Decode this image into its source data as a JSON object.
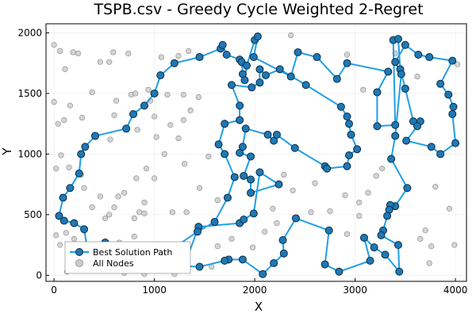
{
  "chart_data": {
    "type": "scatter",
    "title": "TSPB.csv - Greedy Cycle Weighted 2-Regret",
    "xlabel": "X",
    "ylabel": "Y",
    "xlim": [
      -80,
      4110
    ],
    "ylim": [
      -50,
      2075
    ],
    "xticks": [
      0,
      1000,
      2000,
      3000,
      4000
    ],
    "yticks": [
      0,
      500,
      1000,
      1500,
      2000
    ],
    "grid": true,
    "legend_position": "bottom-left",
    "series": [
      {
        "name": "Best Solution Path",
        "kind": "line+markers",
        "color": "#1f9fe8",
        "marker_color": "#1f78b4",
        "closed": true,
        "points": [
          [
            1450,
            1800
          ],
          [
            1660,
            1870
          ],
          [
            1680,
            1900
          ],
          [
            1720,
            1820
          ],
          [
            1850,
            1780
          ],
          [
            1870,
            1760
          ],
          [
            1880,
            1660
          ],
          [
            1900,
            1610
          ],
          [
            1920,
            1730
          ],
          [
            2000,
            1940
          ],
          [
            2030,
            1970
          ],
          [
            1990,
            1800
          ],
          [
            2360,
            1640
          ],
          [
            2430,
            1840
          ],
          [
            2620,
            1800
          ],
          [
            2820,
            1620
          ],
          [
            2920,
            1750
          ],
          [
            3330,
            1680
          ],
          [
            3220,
            1510
          ],
          [
            3220,
            1230
          ],
          [
            3400,
            1240
          ],
          [
            3380,
            1940
          ],
          [
            3430,
            1950
          ],
          [
            3450,
            1700
          ],
          [
            3500,
            1540
          ],
          [
            3580,
            1270
          ],
          [
            3650,
            1270
          ],
          [
            3620,
            1230
          ],
          [
            3510,
            1110
          ],
          [
            3760,
            1060
          ],
          [
            3850,
            1000
          ],
          [
            4000,
            1090
          ],
          [
            3970,
            1330
          ],
          [
            3980,
            1390
          ],
          [
            3930,
            1490
          ],
          [
            3850,
            1580
          ],
          [
            3970,
            1770
          ],
          [
            3740,
            1800
          ],
          [
            3630,
            1820
          ],
          [
            3500,
            1900
          ],
          [
            3400,
            1760
          ],
          [
            3460,
            1660
          ],
          [
            3400,
            1150
          ],
          [
            3360,
            960
          ],
          [
            3520,
            720
          ],
          [
            3400,
            570
          ],
          [
            3350,
            580
          ],
          [
            3340,
            540
          ],
          [
            3320,
            490
          ],
          [
            3280,
            370
          ],
          [
            3260,
            330
          ],
          [
            3430,
            250
          ],
          [
            3440,
            30
          ],
          [
            3300,
            170
          ],
          [
            3190,
            230
          ],
          [
            3090,
            310
          ],
          [
            3150,
            120
          ],
          [
            2840,
            30
          ],
          [
            2700,
            90
          ],
          [
            2740,
            370
          ],
          [
            2410,
            470
          ],
          [
            2280,
            290
          ],
          [
            2290,
            180
          ],
          [
            2190,
            100
          ],
          [
            2080,
            10
          ],
          [
            1880,
            130
          ],
          [
            1740,
            130
          ],
          [
            1700,
            120
          ],
          [
            1450,
            70
          ],
          [
            1190,
            80
          ],
          [
            1290,
            60
          ],
          [
            1440,
            400
          ],
          [
            1850,
            430
          ],
          [
            1890,
            460
          ],
          [
            1990,
            510
          ],
          [
            2050,
            850
          ],
          [
            2240,
            750
          ],
          [
            1960,
            680
          ],
          [
            1960,
            790
          ],
          [
            1890,
            820
          ],
          [
            1960,
            980
          ],
          [
            1850,
            1010
          ],
          [
            1880,
            1060
          ],
          [
            1910,
            1210
          ],
          [
            2130,
            1160
          ],
          [
            2190,
            1110
          ],
          [
            2220,
            1160
          ],
          [
            2400,
            1050
          ],
          [
            2700,
            900
          ],
          [
            2720,
            880
          ],
          [
            2920,
            900
          ],
          [
            2940,
            990
          ],
          [
            3020,
            1040
          ],
          [
            2960,
            1160
          ],
          [
            2940,
            1250
          ],
          [
            2920,
            1310
          ],
          [
            2860,
            1390
          ],
          [
            2510,
            1570
          ],
          [
            2250,
            1700
          ],
          [
            2110,
            1650
          ],
          [
            2050,
            1700
          ],
          [
            2050,
            1590
          ],
          [
            1970,
            1550
          ],
          [
            1770,
            1570
          ],
          [
            1850,
            1400
          ],
          [
            1850,
            1280
          ],
          [
            1700,
            1250
          ],
          [
            1640,
            1080
          ],
          [
            1700,
            1000
          ],
          [
            1800,
            810
          ],
          [
            1730,
            640
          ],
          [
            1600,
            440
          ],
          [
            1430,
            360
          ],
          [
            1200,
            230
          ],
          [
            1050,
            210
          ],
          [
            760,
            170
          ],
          [
            510,
            270
          ],
          [
            390,
            50
          ],
          [
            350,
            120
          ],
          [
            300,
            380
          ],
          [
            200,
            430
          ],
          [
            100,
            450
          ],
          [
            50,
            490
          ],
          [
            90,
            640
          ],
          [
            160,
            720
          ],
          [
            250,
            840
          ],
          [
            270,
            1000
          ],
          [
            310,
            1060
          ],
          [
            410,
            1150
          ],
          [
            720,
            1210
          ],
          [
            790,
            1330
          ],
          [
            900,
            1400
          ],
          [
            1000,
            1500
          ],
          [
            1060,
            1650
          ],
          [
            1200,
            1750
          ],
          [
            1450,
            1800
          ]
        ]
      },
      {
        "name": "All Nodes",
        "kind": "markers",
        "color": "#cccccc",
        "points": [
          [
            0,
            1900
          ],
          [
            60,
            1850
          ],
          [
            190,
            1840
          ],
          [
            110,
            1700
          ],
          [
            240,
            1830
          ],
          [
            460,
            1760
          ],
          [
            550,
            1760
          ],
          [
            590,
            1840
          ],
          [
            740,
            1830
          ],
          [
            1070,
            1800
          ],
          [
            1240,
            1810
          ],
          [
            1340,
            1850
          ],
          [
            2360,
            1980
          ],
          [
            2920,
            1820
          ],
          [
            3080,
            1530
          ],
          [
            3400,
            1830
          ],
          [
            3620,
            1640
          ],
          [
            4020,
            1740
          ],
          [
            0,
            1430
          ],
          [
            40,
            1250
          ],
          [
            100,
            1280
          ],
          [
            160,
            1400
          ],
          [
            280,
            1300
          ],
          [
            380,
            1510
          ],
          [
            600,
            1320
          ],
          [
            620,
            1440
          ],
          [
            770,
            1490
          ],
          [
            810,
            1500
          ],
          [
            940,
            1530
          ],
          [
            960,
            1440
          ],
          [
            1000,
            1310
          ],
          [
            1130,
            1490
          ],
          [
            1290,
            1490
          ],
          [
            1360,
            1360
          ],
          [
            1440,
            1470
          ],
          [
            1290,
            1280
          ],
          [
            1160,
            1240
          ],
          [
            1240,
            1130
          ],
          [
            830,
            1200
          ],
          [
            1020,
            1140
          ],
          [
            560,
            1120
          ],
          [
            20,
            880
          ],
          [
            70,
            990
          ],
          [
            150,
            890
          ],
          [
            270,
            830
          ],
          [
            300,
            720
          ],
          [
            380,
            560
          ],
          [
            460,
            650
          ],
          [
            510,
            470
          ],
          [
            550,
            500
          ],
          [
            600,
            560
          ],
          [
            640,
            650
          ],
          [
            700,
            680
          ],
          [
            820,
            800
          ],
          [
            920,
            880
          ],
          [
            900,
            600
          ],
          [
            850,
            520
          ],
          [
            800,
            470
          ],
          [
            900,
            510
          ],
          [
            1000,
            800
          ],
          [
            1100,
            1000
          ],
          [
            1300,
            920
          ],
          [
            1450,
            720
          ],
          [
            1540,
            980
          ],
          [
            1630,
            620
          ],
          [
            1320,
            520
          ],
          [
            1180,
            520
          ],
          [
            2180,
            550
          ],
          [
            2290,
            830
          ],
          [
            2380,
            700
          ],
          [
            2600,
            760
          ],
          [
            2750,
            530
          ],
          [
            2900,
            660
          ],
          [
            3040,
            600
          ],
          [
            3130,
            680
          ],
          [
            3210,
            820
          ],
          [
            3270,
            880
          ],
          [
            3800,
            730
          ],
          [
            3940,
            550
          ],
          [
            3700,
            370
          ],
          [
            3650,
            300
          ],
          [
            3760,
            240
          ],
          [
            3990,
            250
          ],
          [
            3740,
            100
          ],
          [
            3040,
            490
          ],
          [
            2920,
            340
          ],
          [
            2560,
            520
          ],
          [
            2220,
            430
          ],
          [
            2100,
            360
          ],
          [
            1980,
            230
          ],
          [
            1770,
            300
          ],
          [
            1630,
            240
          ],
          [
            1570,
            70
          ],
          [
            1300,
            180
          ],
          [
            1100,
            130
          ],
          [
            1000,
            80
          ],
          [
            800,
            320
          ],
          [
            650,
            270
          ],
          [
            540,
            240
          ],
          [
            420,
            170
          ],
          [
            200,
            300
          ],
          [
            120,
            350
          ],
          [
            60,
            250
          ],
          [
            20,
            330
          ],
          [
            130,
            30
          ],
          [
            250,
            80
          ],
          [
            520,
            200
          ],
          [
            700,
            20
          ],
          [
            780,
            50
          ],
          [
            900,
            10
          ],
          [
            1200,
            10
          ]
        ]
      }
    ]
  }
}
